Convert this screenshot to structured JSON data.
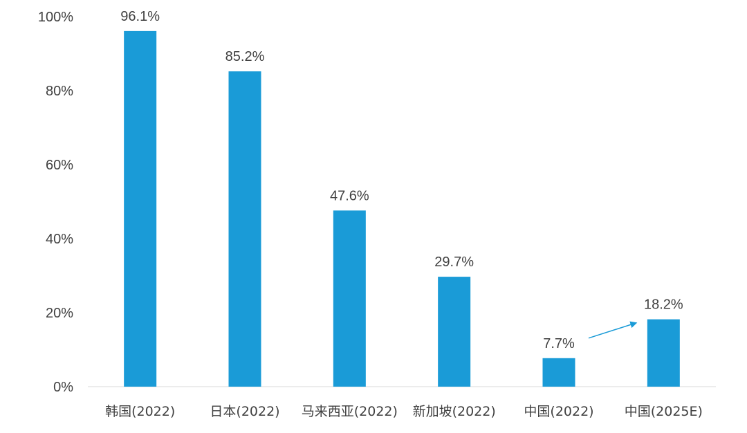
{
  "chart_data": {
    "type": "bar",
    "categories": [
      "韩国(2022)",
      "日本(2022)",
      "马来西亚(2022)",
      "新加坡(2022)",
      "中国(2022)",
      "中国(2025E)"
    ],
    "values": [
      96.1,
      85.2,
      47.6,
      29.7,
      7.7,
      18.2
    ],
    "data_labels": [
      "96.1%",
      "85.2%",
      "47.6%",
      "29.7%",
      "7.7%",
      "18.2%"
    ],
    "title": "",
    "xlabel": "",
    "ylabel": "",
    "ylim": [
      0,
      100
    ],
    "yticks": [
      0,
      20,
      40,
      60,
      80,
      100
    ],
    "ytick_labels": [
      "0%",
      "20%",
      "40%",
      "60%",
      "80%",
      "100%"
    ],
    "grid": false,
    "bar_color": "#1a9bd7",
    "arrow_color": "#1a9bd7",
    "annotations": [
      {
        "type": "arrow",
        "from_category": "中国(2022)",
        "to_category": "中国(2025E)"
      }
    ]
  }
}
